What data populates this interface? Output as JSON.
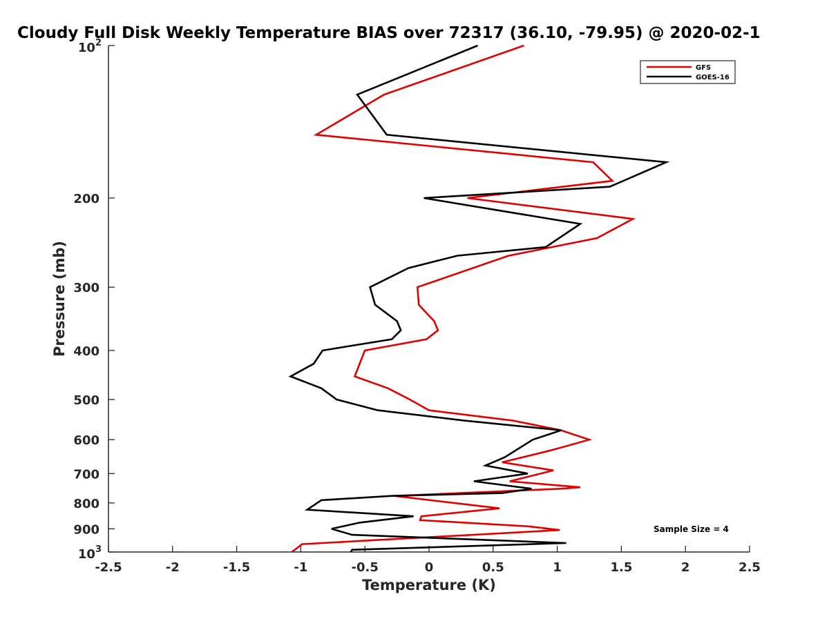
{
  "chart_data": {
    "type": "line",
    "title": "Cloudy Full Disk Weekly Temperature BIAS over 72317 (36.10, -79.95) @ 2020-02-1",
    "xlabel": "Temperature (K)",
    "ylabel": "Pressure (mb)",
    "xlim": [
      -2.5,
      2.5
    ],
    "ylim": [
      100,
      1000
    ],
    "y_scale": "log",
    "y_reversed": true,
    "grid": false,
    "legend_position": "top-right",
    "x_ticks": [
      "-2.5",
      "-2",
      "-1.5",
      "-1",
      "-0.5",
      "0",
      "0.5",
      "1",
      "1.5",
      "2",
      "2.5"
    ],
    "y_ticks": [
      {
        "value": 100,
        "base": "10",
        "exp": "2"
      },
      {
        "value": 200,
        "label": "200"
      },
      {
        "value": 300,
        "label": "300"
      },
      {
        "value": 400,
        "label": "400"
      },
      {
        "value": 500,
        "label": "500"
      },
      {
        "value": 600,
        "label": "600"
      },
      {
        "value": 700,
        "label": "700"
      },
      {
        "value": 800,
        "label": "800"
      },
      {
        "value": 900,
        "label": "900"
      },
      {
        "value": 1000,
        "base": "10",
        "exp": "3"
      }
    ],
    "annotation": "Sample Size = 4",
    "series": [
      {
        "name": "GFS",
        "color": "#e00000",
        "points": [
          [
            0.74,
            100
          ],
          [
            -0.35,
            125
          ],
          [
            -0.88,
            150
          ],
          [
            1.28,
            170
          ],
          [
            1.43,
            185
          ],
          [
            0.3,
            200
          ],
          [
            1.59,
            220
          ],
          [
            1.31,
            240
          ],
          [
            0.62,
            260
          ],
          [
            -0.09,
            300
          ],
          [
            -0.08,
            325
          ],
          [
            0.04,
            350
          ],
          [
            0.07,
            365
          ],
          [
            -0.02,
            380
          ],
          [
            -0.5,
            400
          ],
          [
            -0.58,
            450
          ],
          [
            -0.32,
            475
          ],
          [
            -0.15,
            500
          ],
          [
            0.0,
            525
          ],
          [
            0.65,
            550
          ],
          [
            1.03,
            575
          ],
          [
            1.25,
            600
          ],
          [
            0.95,
            630
          ],
          [
            0.57,
            665
          ],
          [
            0.97,
            690
          ],
          [
            0.63,
            725
          ],
          [
            1.18,
            745
          ],
          [
            1.03,
            750
          ],
          [
            -0.27,
            775
          ],
          [
            0.55,
            820
          ],
          [
            -0.06,
            850
          ],
          [
            -0.07,
            865
          ],
          [
            0.78,
            890
          ],
          [
            1.02,
            905
          ],
          [
            -0.99,
            965
          ],
          [
            -1.07,
            1000
          ]
        ]
      },
      {
        "name": "GOES-16",
        "color": "#000000",
        "points": [
          [
            0.38,
            100
          ],
          [
            -0.56,
            125
          ],
          [
            -0.33,
            150
          ],
          [
            1.85,
            170
          ],
          [
            1.41,
            190
          ],
          [
            -0.04,
            200
          ],
          [
            1.18,
            225
          ],
          [
            0.91,
            250
          ],
          [
            0.22,
            260
          ],
          [
            -0.16,
            275
          ],
          [
            -0.46,
            300
          ],
          [
            -0.42,
            325
          ],
          [
            -0.25,
            350
          ],
          [
            -0.22,
            365
          ],
          [
            -0.29,
            380
          ],
          [
            -0.83,
            400
          ],
          [
            -0.9,
            425
          ],
          [
            -1.08,
            450
          ],
          [
            -0.84,
            475
          ],
          [
            -0.72,
            500
          ],
          [
            -0.4,
            525
          ],
          [
            0.27,
            550
          ],
          [
            1.03,
            575
          ],
          [
            0.81,
            600
          ],
          [
            0.59,
            650
          ],
          [
            0.44,
            675
          ],
          [
            0.77,
            700
          ],
          [
            0.35,
            725
          ],
          [
            0.8,
            750
          ],
          [
            0.57,
            765
          ],
          [
            -0.29,
            775
          ],
          [
            -0.84,
            790
          ],
          [
            -0.95,
            825
          ],
          [
            -0.12,
            850
          ],
          [
            -0.54,
            875
          ],
          [
            -0.76,
            900
          ],
          [
            -0.6,
            925
          ],
          [
            1.07,
            960
          ],
          [
            -0.6,
            990
          ],
          [
            -0.61,
            1000
          ]
        ]
      }
    ]
  }
}
